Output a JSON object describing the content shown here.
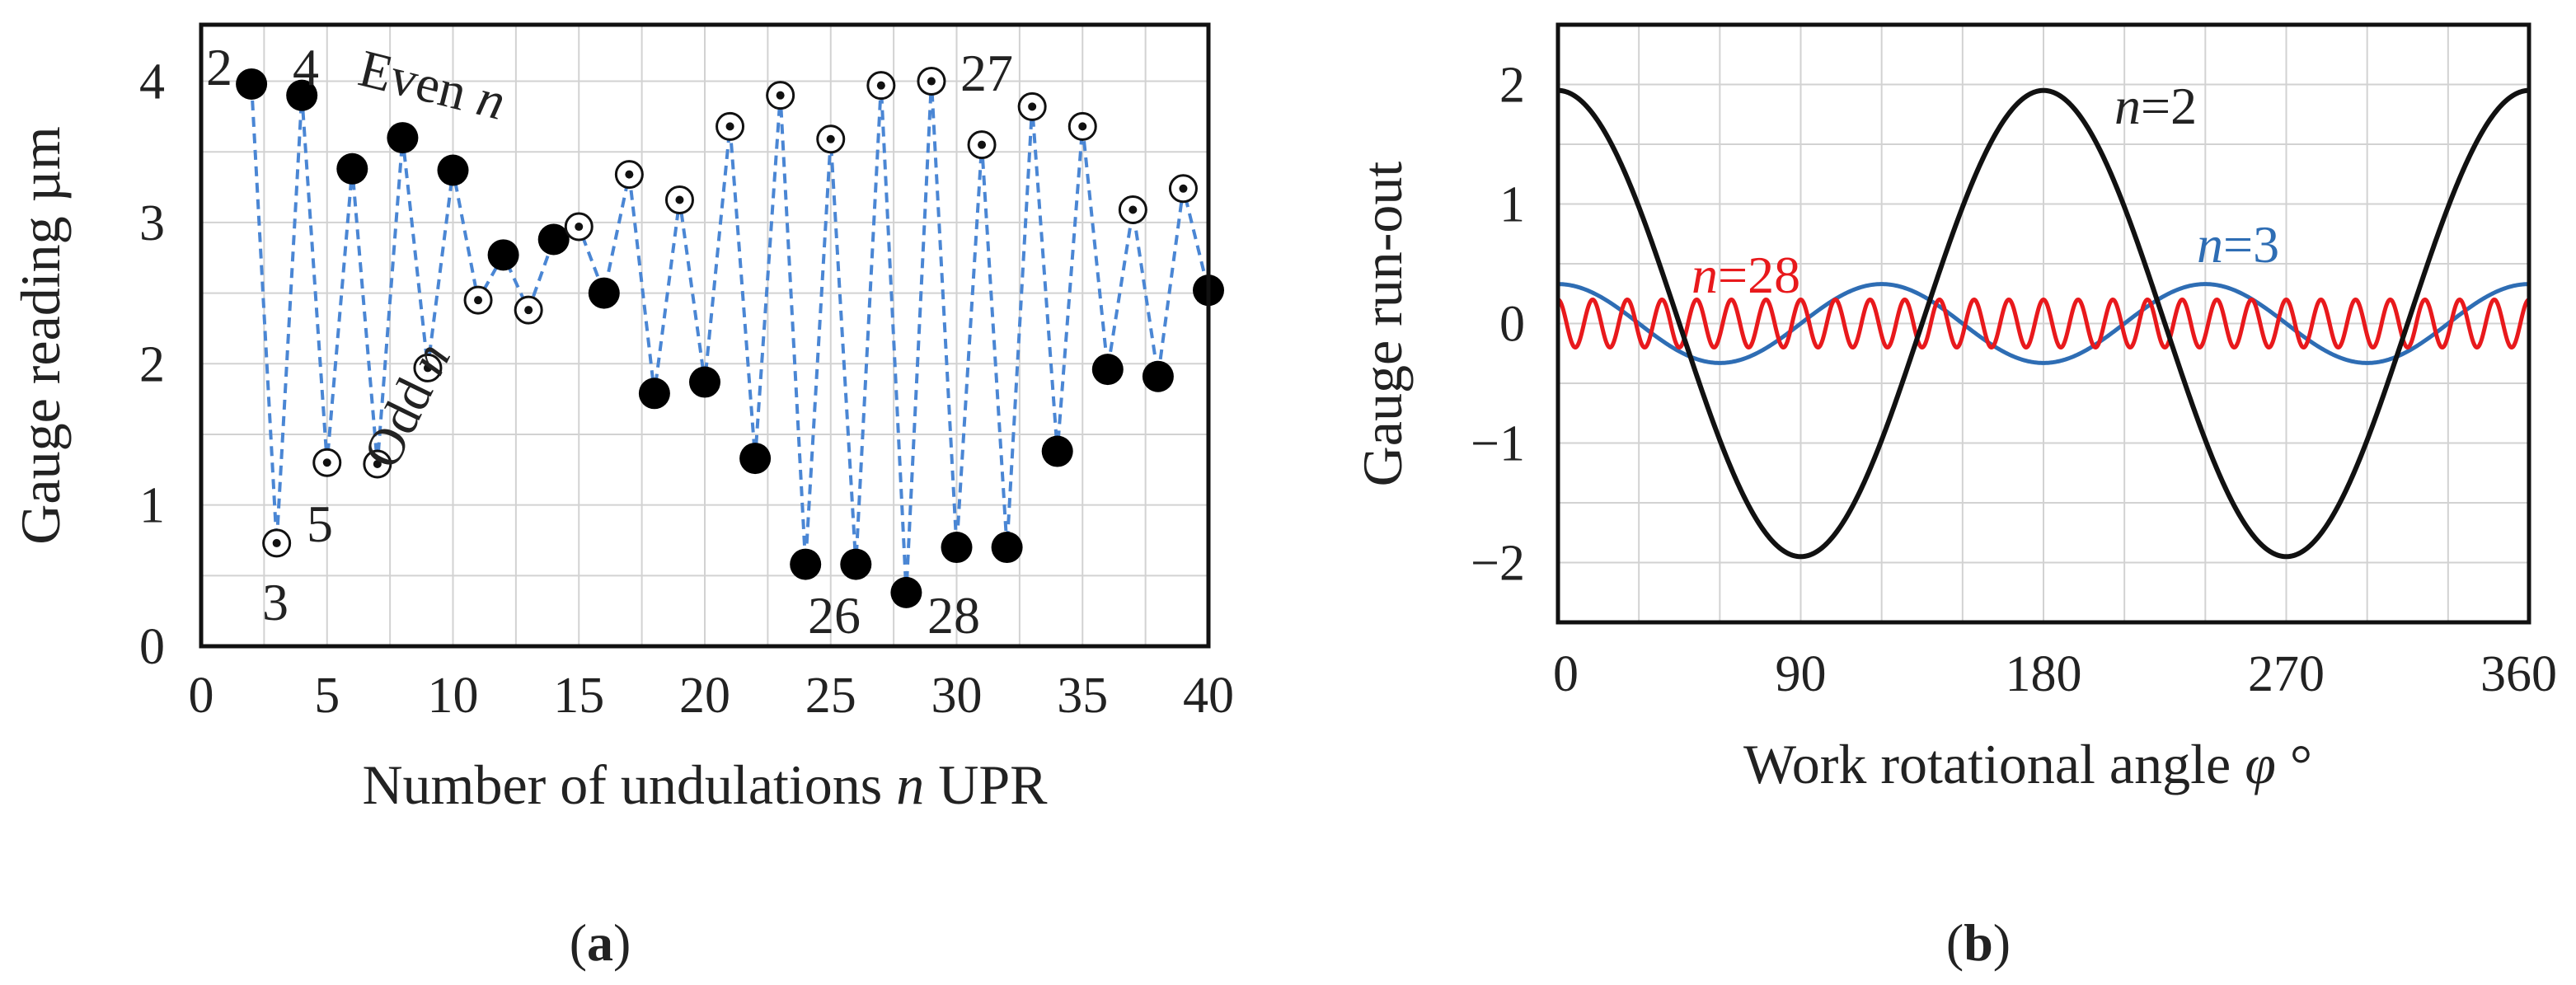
{
  "chart_data": [
    {
      "id": "a",
      "type": "scatter",
      "panel_label": "a",
      "xlabel": "Number of undulations",
      "xlabel_symbol": "n",
      "xlabel_unit": "UPR",
      "ylabel": "Gauge reading µm",
      "xlim": [
        0,
        40
      ],
      "ylim": [
        0,
        4.4
      ],
      "xticks": [
        0,
        5,
        10,
        15,
        20,
        25,
        30,
        35,
        40
      ],
      "yticks": [
        0,
        1,
        2,
        3,
        4
      ],
      "grid": true,
      "line_style": "dashed",
      "line_color": "#4a86d4",
      "series": [
        {
          "name": "Even n",
          "marker": "filled",
          "x": [
            2,
            4,
            6,
            8,
            10,
            12,
            14,
            16,
            18,
            20,
            22,
            24,
            26,
            28,
            30,
            32,
            34,
            36,
            38,
            40
          ],
          "y": [
            3.98,
            3.9,
            3.38,
            3.6,
            3.37,
            2.77,
            2.88,
            2.5,
            1.79,
            1.87,
            1.33,
            0.58,
            0.58,
            0.38,
            0.7,
            0.7,
            1.38,
            1.96,
            1.91,
            2.52
          ]
        },
        {
          "name": "Odd n",
          "marker": "open",
          "x": [
            3,
            5,
            7,
            9,
            11,
            13,
            15,
            17,
            19,
            21,
            23,
            25,
            27,
            29,
            31,
            33,
            35,
            37,
            39
          ],
          "y": [
            0.73,
            1.3,
            1.29,
            1.97,
            2.45,
            2.38,
            2.97,
            3.34,
            3.16,
            3.68,
            3.9,
            3.59,
            3.97,
            4.0,
            3.55,
            3.82,
            3.68,
            3.09,
            3.24
          ]
        }
      ],
      "annotations": [
        {
          "text": "2",
          "x": 2
        },
        {
          "text": "4",
          "x": 4
        },
        {
          "text": "3",
          "x": 3
        },
        {
          "text": "5",
          "x": 5
        },
        {
          "text": "26",
          "x": 26
        },
        {
          "text": "28",
          "x": 28
        },
        {
          "text": "27",
          "x": 27
        },
        {
          "text": "Even",
          "symbol": "n"
        },
        {
          "text": "Odd",
          "symbol": "n"
        }
      ]
    },
    {
      "id": "b",
      "type": "line",
      "panel_label": "b",
      "xlabel": "Work rotational angle",
      "xlabel_symbol": "φ",
      "xlabel_unit": "°",
      "ylabel": "Gauge run-out",
      "xlim": [
        0,
        360
      ],
      "ylim": [
        -2.5,
        2.5
      ],
      "xticks": [
        0,
        90,
        180,
        270,
        360
      ],
      "yticks": [
        -2,
        -1,
        0,
        1,
        2
      ],
      "ytick_labels": [
        "−2",
        "−1",
        "0",
        "1",
        "2"
      ],
      "grid": true,
      "series": [
        {
          "name": "n=2",
          "symbol": "n",
          "value_text": "=2",
          "n": 2,
          "amplitude": 1.95,
          "color": "#111111"
        },
        {
          "name": "n=3",
          "symbol": "n",
          "value_text": "=3",
          "n": 3,
          "amplitude": 0.33,
          "color": "#2e6db4"
        },
        {
          "name": "n=28",
          "symbol": "n",
          "value_text": "=28",
          "n": 28,
          "amplitude": 0.2,
          "color": "#e8191c"
        }
      ]
    }
  ]
}
